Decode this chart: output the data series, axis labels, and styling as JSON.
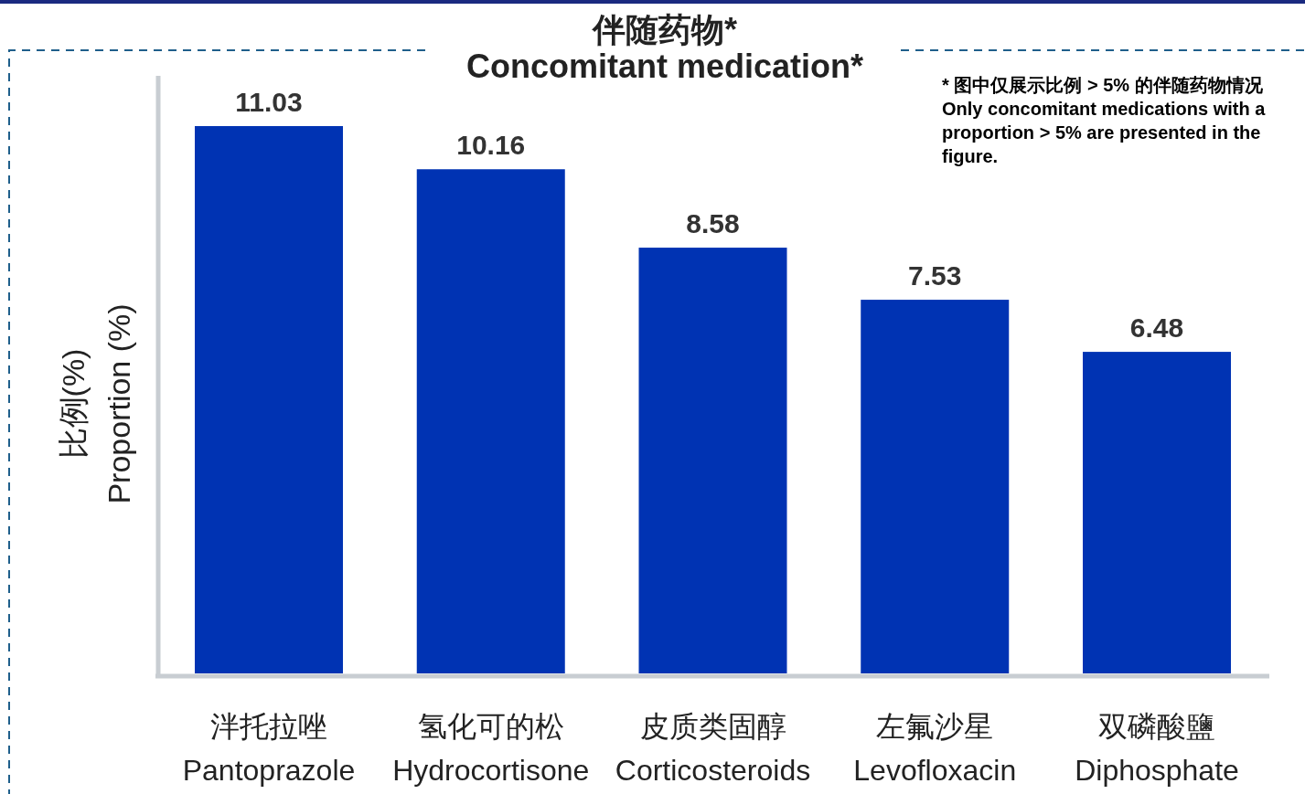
{
  "chart_data": {
    "type": "bar",
    "title": "伴随药物*\nConcomitant medication*",
    "ylabel": "比例(%)\nProportion (%)",
    "categories": [
      "泮托拉唑\nPantoprazole",
      "氢化可的松\nHydrocortisone",
      "皮质类固醇\nCorticosteroids",
      "左氟沙星\nLevofloxacin",
      "双磷酸鹽\nDiphosphate"
    ],
    "values": [
      11.03,
      10.16,
      8.58,
      7.53,
      6.48
    ],
    "color": "#0033b3",
    "data_labels": true,
    "annotations": [
      "* 图中仅展示比例 > 5% 的伴随药物情况\nOnly concomitant medications with a\nproportion > 5% are presented in the\nfigure."
    ]
  }
}
